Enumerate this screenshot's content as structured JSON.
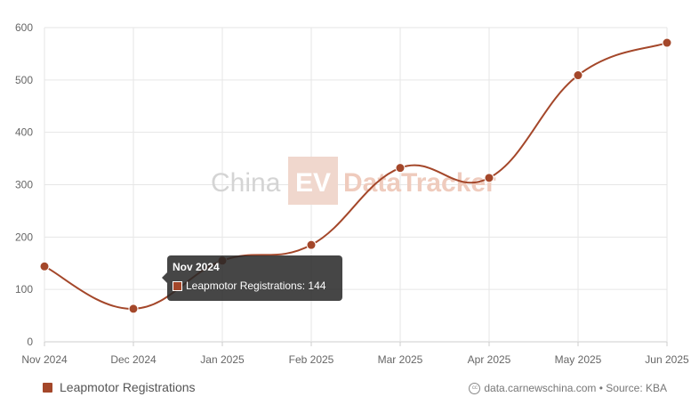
{
  "colors": {
    "series": "#a4472a",
    "grid": "#e6e6e6",
    "watermark_text": "#d4d4d4",
    "watermark_box": "#f0d7cd",
    "watermark_box_text": "#ffffff",
    "watermark_tracker": "#efcbbd"
  },
  "watermark": {
    "left": "China",
    "box": "EV",
    "right": "DataTracker"
  },
  "chart_data": {
    "type": "line",
    "categories": [
      "Nov 2024",
      "Dec 2024",
      "Jan 2025",
      "Feb 2025",
      "Mar 2025",
      "Apr 2025",
      "May 2025",
      "Jun 2025"
    ],
    "series": [
      {
        "name": "Leapmotor Registrations",
        "values": [
          144,
          63,
          155,
          185,
          332,
          313,
          509,
          571
        ]
      }
    ],
    "ylim": [
      0,
      600
    ],
    "yticks": [
      0,
      100,
      200,
      300,
      400,
      500,
      600
    ],
    "grid": true,
    "legend": "bottom-left",
    "source": "data.carnewschina.com • Source: KBA"
  },
  "tooltip": {
    "title": "Nov 2024",
    "label": "Leapmotor Registrations: 144"
  },
  "icons": {
    "source": "creative-commons-icon"
  }
}
